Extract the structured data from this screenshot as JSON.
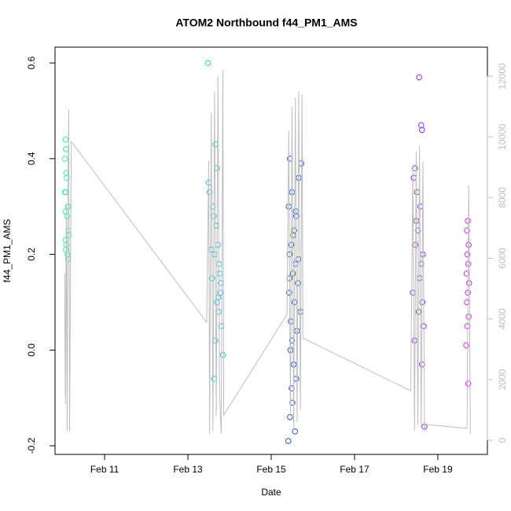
{
  "chart_data": {
    "type": "scatter",
    "title": "ATOM2 Northbound f44_PM1_AMS",
    "x_label": "Date",
    "y_label": "f44_PM1_AMS",
    "xlim": [
      9.81,
      20.19
    ],
    "xticks": [
      {
        "value": 11,
        "label": "Feb 11"
      },
      {
        "value": 13,
        "label": "Feb 13"
      },
      {
        "value": 15,
        "label": "Feb 15"
      },
      {
        "value": 17,
        "label": "Feb 17"
      },
      {
        "value": 19,
        "label": "Feb 19"
      }
    ],
    "ylim": [
      -0.218,
      0.633
    ],
    "yticks": [
      -0.2,
      {
        "value": 0,
        "label": "0.0"
      },
      0.2,
      0.4,
      0.6
    ],
    "y2lim": [
      -467,
      12959
    ],
    "y2ticks": [
      0,
      2000,
      4000,
      6000,
      8000,
      10000,
      12000
    ],
    "series": [
      {
        "color": "#2ef5b8",
        "x": [
          10.06,
          10.07,
          10.05,
          10.08,
          10.09,
          10.05,
          10.07,
          10.12,
          10.13,
          10.06,
          10.1,
          10.13,
          10.06,
          10.14,
          10.08,
          10.07,
          10.11,
          10.12
        ],
        "values": [
          0.44,
          0.42,
          0.4,
          0.37,
          0.36,
          0.33,
          0.33,
          0.3,
          0.3,
          0.29,
          0.28,
          0.25,
          0.23,
          0.24,
          0.22,
          0.21,
          0.2,
          0.19
        ]
      },
      {
        "color": "#22c4f0",
        "x": [
          13.48,
          13.5,
          13.52,
          13.6,
          13.62,
          13.66,
          13.7,
          13.68,
          13.72,
          13.64,
          13.75,
          13.58,
          13.78,
          13.7,
          13.74,
          13.8,
          13.66,
          13.84,
          13.63,
          13.76,
          13.56,
          13.79,
          13.73
        ],
        "values": [
          0.6,
          0.35,
          0.33,
          0.3,
          0.28,
          0.43,
          0.38,
          0.26,
          0.22,
          0.2,
          0.18,
          0.15,
          0.12,
          0.1,
          0.08,
          0.05,
          0.02,
          -0.01,
          -0.06,
          0.16,
          0.21,
          0.14,
          0.11
        ]
      },
      {
        "color": "#2255ee",
        "x": [
          15.45,
          15.72,
          15.66,
          15.5,
          15.42,
          15.6,
          15.55,
          15.48,
          15.44,
          15.58,
          15.52,
          15.64,
          15.43,
          15.56,
          15.7,
          15.47,
          15.62,
          15.5,
          15.46,
          15.54,
          15.6,
          15.49,
          15.51,
          15.45,
          15.57,
          15.41,
          15.59,
          15.53,
          15.65,
          15.44
        ],
        "values": [
          0.4,
          0.39,
          0.36,
          0.33,
          0.3,
          0.28,
          0.25,
          0.22,
          0.2,
          0.18,
          0.16,
          0.14,
          0.12,
          0.1,
          0.08,
          0.06,
          0.04,
          0.02,
          0,
          -0.03,
          -0.06,
          -0.08,
          -0.11,
          -0.14,
          -0.17,
          -0.19,
          0.29,
          0.24,
          0.19,
          0.15
        ]
      },
      {
        "color": "#8833ee",
        "x": [
          18.55,
          18.6,
          18.62,
          18.45,
          18.42,
          18.5,
          18.58,
          18.48,
          18.52,
          18.46,
          18.64,
          18.6,
          18.56,
          18.4,
          18.63,
          18.54,
          18.66,
          18.44,
          18.62,
          18.68
        ],
        "values": [
          0.57,
          0.47,
          0.46,
          0.38,
          0.36,
          0.33,
          0.3,
          0.27,
          0.25,
          0.22,
          0.2,
          0.18,
          0.15,
          0.12,
          0.1,
          0.08,
          0.05,
          0.02,
          -0.03,
          -0.16
        ]
      },
      {
        "color": "#dd22ee",
        "x": [
          19.72,
          19.7,
          19.74,
          19.71,
          19.73,
          19.69,
          19.75,
          19.72,
          19.7,
          19.74,
          19.71,
          19.68,
          19.73
        ],
        "values": [
          0.27,
          0.25,
          0.22,
          0.2,
          0.18,
          0.16,
          0.14,
          0.12,
          0.1,
          0.07,
          0.05,
          0.01,
          -0.07
        ]
      },
      {
        "type": "line",
        "axis": "y2",
        "color": "#bebebe",
        "x": [
          10.04,
          10.06,
          10.08,
          10.1,
          10.12,
          10.14,
          10.16,
          10.2,
          13.45,
          13.5,
          13.52,
          13.56,
          13.6,
          13.64,
          13.68,
          13.72,
          13.76,
          13.8,
          13.84,
          13.86,
          15.38,
          15.42,
          15.46,
          15.5,
          15.54,
          15.58,
          15.62,
          15.66,
          15.7,
          15.74,
          15.76,
          18.35,
          18.4,
          18.44,
          18.48,
          18.52,
          18.56,
          18.6,
          18.64,
          18.68,
          18.7,
          19.7,
          19.74,
          19.78
        ],
        "values": [
          5500,
          1200,
          7800,
          300,
          8500,
          10900,
          300,
          9850,
          3890,
          9200,
          200,
          10800,
          300,
          11500,
          800,
          12000,
          1500,
          200,
          12200,
          830,
          4150,
          10200,
          900,
          11000,
          400,
          11300,
          600,
          11500,
          1000,
          11400,
          3370,
          1630,
          9000,
          300,
          9500,
          500,
          9700,
          400,
          9200,
          300,
          520,
          390,
          8400,
          200
        ]
      }
    ]
  }
}
